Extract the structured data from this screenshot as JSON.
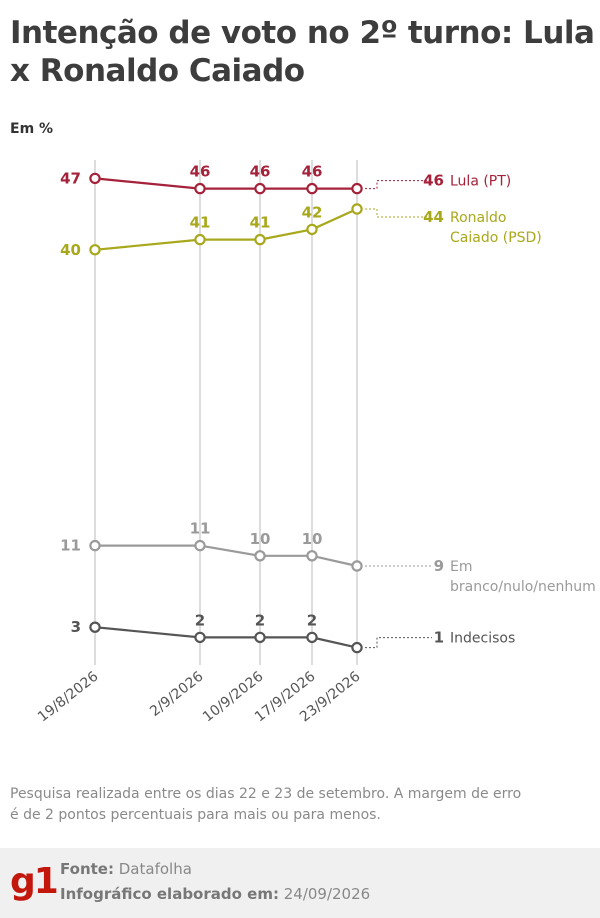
{
  "title": "Intenção de voto no 2º turno: Lula x Ronaldo Caiado",
  "unit_label": "Em %",
  "note": "Pesquisa realizada entre os dias 22 e 23 de setembro. A margem de erro é de 2 pontos percentuais para mais ou para menos.",
  "footer": {
    "logo": "g1",
    "source_label": "Fonte:",
    "source_value": "Datafolha",
    "made_label": "Infográfico elaborado em:",
    "made_value": "24/09/2026"
  },
  "chart_data": {
    "type": "line",
    "x": [
      "19/8/2026",
      "2/9/2026",
      "10/9/2026",
      "17/9/2026",
      "23/9/2026"
    ],
    "ylabel": "Em %",
    "series": [
      {
        "name": "Lula (PT)",
        "end_label": "Lula (PT)",
        "values": [
          47,
          46,
          46,
          46,
          46
        ],
        "color": "#a5223a"
      },
      {
        "name": "Ronaldo Caiado (PSD)",
        "end_label": [
          "Ronaldo",
          "Caiado (PSD)"
        ],
        "values": [
          40,
          41,
          41,
          42,
          44
        ],
        "color": "#a8a81c"
      },
      {
        "name": "Em branco/nulo/nenhum",
        "end_label": [
          "Em",
          "branco/nulo/nenhum"
        ],
        "values": [
          11,
          11,
          10,
          10,
          9
        ],
        "color": "#9a9a9a"
      },
      {
        "name": "Indecisos",
        "end_label": "Indecisos",
        "values": [
          3,
          2,
          2,
          2,
          1
        ],
        "color": "#555555"
      }
    ],
    "grid": "vertical",
    "legend": "end-of-line labels"
  }
}
